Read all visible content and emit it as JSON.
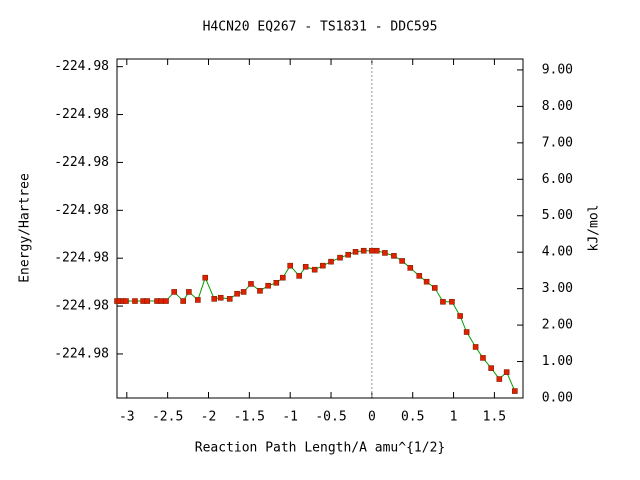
{
  "chart_data": {
    "type": "line",
    "title": "H4CN20   EQ267 - TS1831 - DDC595",
    "x_label": "Reaction Path Length/A amu^{1/2}",
    "y_label": "Energy/Hartree",
    "y2_label": "kJ/mol",
    "xlim": [
      -3.12,
      1.85
    ],
    "xticks": [
      -3,
      -2.5,
      -2,
      -1.5,
      -1,
      -0.5,
      0,
      0.5,
      1,
      1.5
    ],
    "ylim": [
      -224.98546,
      -224.98192
    ],
    "yticks": [
      {
        "value": -224.985,
        "label": "-224.98"
      },
      {
        "value": -224.9845,
        "label": "-224.98"
      },
      {
        "value": -224.984,
        "label": "-224.98"
      },
      {
        "value": -224.9835,
        "label": "-224.98"
      },
      {
        "value": -224.983,
        "label": "-224.98"
      },
      {
        "value": -224.9825,
        "label": "-224.98"
      },
      {
        "value": -224.982,
        "label": "-224.98"
      }
    ],
    "y2lim": [
      0,
      9.3
    ],
    "y2ticks": [
      {
        "value": 0,
        "label": "0.00"
      },
      {
        "value": 1,
        "label": "1.00"
      },
      {
        "value": 2,
        "label": "2.00"
      },
      {
        "value": 3,
        "label": "3.00"
      },
      {
        "value": 4,
        "label": "4.00"
      },
      {
        "value": 5,
        "label": "5.00"
      },
      {
        "value": 6,
        "label": "6.00"
      },
      {
        "value": 7,
        "label": "7.00"
      },
      {
        "value": 8,
        "label": "8.00"
      },
      {
        "value": 9,
        "label": "9.00"
      }
    ],
    "vline": 0,
    "x": [
      -3.12,
      -3.09,
      -3.05,
      -3.01,
      -2.9,
      -2.8,
      -2.75,
      -2.63,
      -2.58,
      -2.52,
      -2.42,
      -2.31,
      -2.24,
      -2.13,
      -2.04,
      -1.93,
      -1.85,
      -1.74,
      -1.65,
      -1.57,
      -1.48,
      -1.37,
      -1.27,
      -1.17,
      -1.09,
      -1.0,
      -0.89,
      -0.81,
      -0.7,
      -0.6,
      -0.5,
      -0.39,
      -0.29,
      -0.2,
      -0.1,
      0,
      0.06,
      0.16,
      0.27,
      0.37,
      0.47,
      0.58,
      0.67,
      0.77,
      0.87,
      0.98,
      1.08,
      1.16,
      1.27,
      1.36,
      1.46,
      1.56,
      1.65,
      1.75
    ],
    "series": [
      {
        "axis": "y2",
        "color": "#00a000",
        "marker_color": "#e02000",
        "values": [
          2.66,
          2.66,
          2.66,
          2.66,
          2.66,
          2.66,
          2.66,
          2.66,
          2.66,
          2.66,
          2.91,
          2.66,
          2.91,
          2.69,
          3.3,
          2.72,
          2.75,
          2.72,
          2.86,
          2.91,
          3.13,
          2.94,
          3.08,
          3.16,
          3.3,
          3.63,
          3.35,
          3.6,
          3.52,
          3.63,
          3.74,
          3.85,
          3.93,
          4.01,
          4.04,
          4.04,
          4.04,
          3.98,
          3.9,
          3.76,
          3.57,
          3.35,
          3.19,
          3.02,
          2.64,
          2.64,
          2.25,
          1.81,
          1.4,
          1.1,
          0.82,
          0.52,
          0.71,
          0.19
        ]
      }
    ]
  }
}
